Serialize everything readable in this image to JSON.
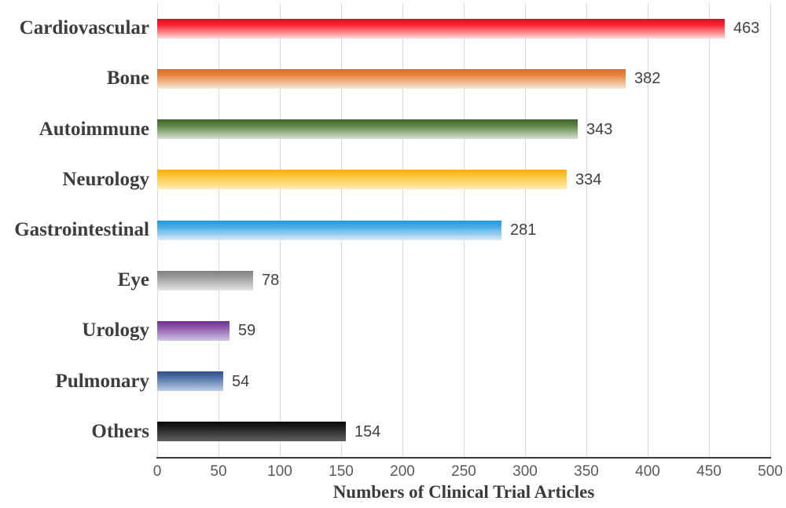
{
  "figure": {
    "background": "#ffffff"
  },
  "chart_data": {
    "type": "bar",
    "orientation": "horizontal",
    "title": "",
    "xlabel": "Numbers of Clinical Trial Articles",
    "ylabel": "",
    "xlim": [
      0,
      500
    ],
    "x_ticks": [
      "0",
      "50",
      "100",
      "150",
      "200",
      "250",
      "300",
      "350",
      "400",
      "450",
      "500"
    ],
    "grid": "vertical-only",
    "legend": "none",
    "categories": [
      "Cardiovascular",
      "Bone",
      "Autoimmune",
      "Neurology",
      "Gastrointestinal",
      "Eye",
      "Urology",
      "Pulmonary",
      "Others"
    ],
    "values": [
      463,
      382,
      343,
      334,
      281,
      78,
      59,
      54,
      154
    ],
    "value_labels": [
      "463",
      "382",
      "343",
      "334",
      "281",
      "78",
      "59",
      "54",
      "154"
    ],
    "bar_gradients": [
      {
        "name": "red",
        "top": "#da1120",
        "mid": "#f8222f",
        "bottom": "#fcd8d4"
      },
      {
        "name": "orange",
        "top": "#d96c2b",
        "mid": "#e58540",
        "bottom": "#f8e6d8"
      },
      {
        "name": "green",
        "top": "#40672e",
        "mid": "#5b8244",
        "bottom": "#d5e2cd"
      },
      {
        "name": "yellow",
        "top": "#f6ad13",
        "mid": "#fbc233",
        "bottom": "#fdeeba"
      },
      {
        "name": "sky-blue",
        "top": "#1e9ade",
        "mid": "#44aae6",
        "bottom": "#ddeaf6"
      },
      {
        "name": "gray",
        "top": "#7f7f7f",
        "mid": "#999999",
        "bottom": "#e3e3e3"
      },
      {
        "name": "purple",
        "top": "#6f2f91",
        "mid": "#8a56a8",
        "bottom": "#cfc2e2"
      },
      {
        "name": "steel-blue",
        "top": "#2e5189",
        "mid": "#4c6fa4",
        "bottom": "#c0cde5"
      },
      {
        "name": "black",
        "top": "#0a0a0a",
        "mid": "#1f1f1f",
        "bottom": "#606060"
      }
    ],
    "styles": {
      "grid_color": "#d9d9d9",
      "axis_line_color": "#3a3a3a",
      "category_label_color": "#3d3d3d",
      "tick_label_color": "#595959",
      "value_label_color": "#3f3f3f",
      "axis_title_color": "#3b3b3b"
    }
  }
}
